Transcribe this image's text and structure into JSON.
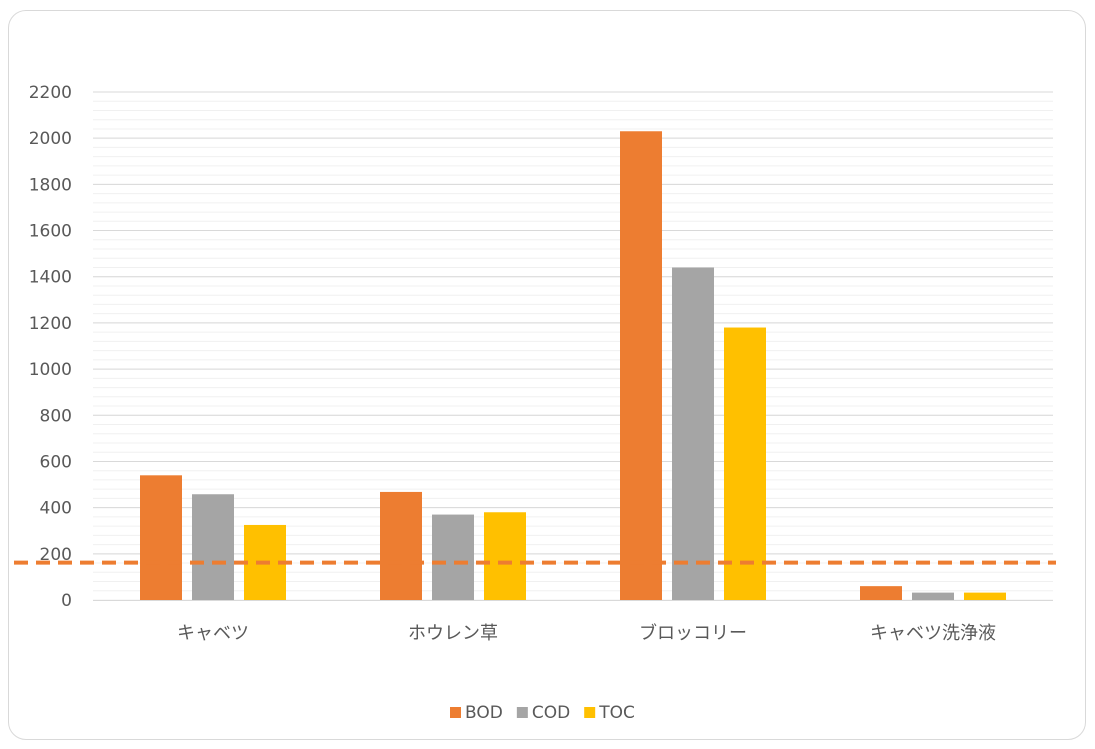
{
  "chart_data": {
    "type": "bar",
    "categories": [
      "キャベツ",
      "ホウレン草",
      "ブロッコリー",
      "キャベツ洗浄液"
    ],
    "series": [
      {
        "name": "BOD",
        "values": [
          540,
          468,
          2030,
          60
        ],
        "color": "#ED7D31"
      },
      {
        "name": "COD",
        "values": [
          458,
          370,
          1440,
          32
        ],
        "color": "#A5A5A5"
      },
      {
        "name": "TOC",
        "values": [
          325,
          380,
          1180,
          32
        ],
        "color": "#FFC000"
      }
    ],
    "ylim": [
      0,
      2200
    ],
    "yticks": [
      0,
      200,
      400,
      600,
      800,
      1000,
      1200,
      1400,
      1600,
      1800,
      2000,
      2200
    ],
    "minor_grid_step": 40,
    "reference_line": {
      "value": 162,
      "color": "#ED7D31",
      "style": "dashed"
    },
    "grid": true,
    "legend_position": "bottom"
  }
}
